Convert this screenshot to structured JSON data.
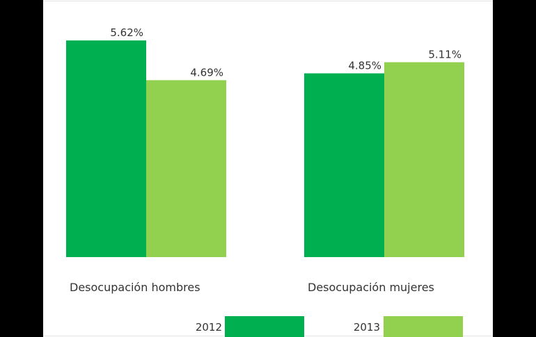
{
  "chart_data": {
    "type": "bar",
    "title": "",
    "xlabel": "",
    "ylabel": "",
    "categories": [
      "Desocupación hombres",
      "Desocupación mujeres"
    ],
    "series": [
      {
        "name": "2012",
        "color": "#00b050",
        "values": [
          5.62,
          4.85
        ],
        "labels": [
          "5.62%",
          "4.85%"
        ]
      },
      {
        "name": "2013",
        "color": "#92d050",
        "values": [
          4.69,
          5.11
        ],
        "labels": [
          "4.69%",
          "5.11%"
        ]
      }
    ],
    "ylim": [
      0.55,
      6.0
    ],
    "grid": false,
    "legend": "bottom"
  }
}
